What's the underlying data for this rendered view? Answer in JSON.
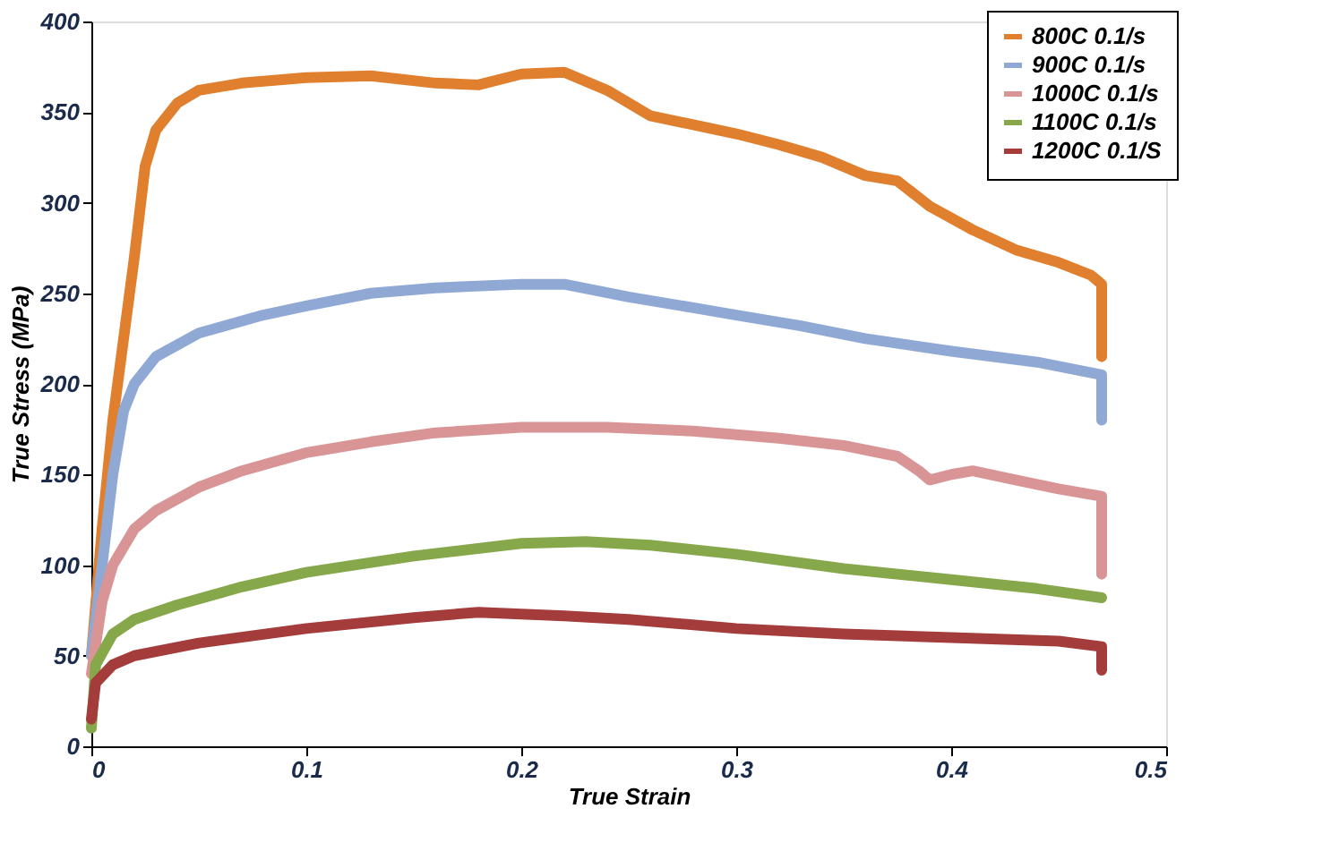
{
  "chart_data": {
    "type": "line",
    "xlabel": "True Strain",
    "ylabel": "True Stress (MPa)",
    "xlim": [
      0,
      0.5
    ],
    "xticks": [
      0,
      0.1,
      0.2,
      0.3,
      0.4,
      0.5
    ],
    "ylim": [
      0,
      400
    ],
    "yticks": [
      0,
      50,
      100,
      150,
      200,
      250,
      300,
      350,
      400
    ],
    "grid": false,
    "legend": "top right",
    "line_style": "solid",
    "series": [
      {
        "name": "800C 0.1/s",
        "color": "#e07f2e",
        "x": [
          0,
          0.005,
          0.01,
          0.02,
          0.025,
          0.03,
          0.04,
          0.05,
          0.07,
          0.1,
          0.13,
          0.16,
          0.18,
          0.2,
          0.22,
          0.24,
          0.26,
          0.28,
          0.3,
          0.32,
          0.34,
          0.36,
          0.375,
          0.39,
          0.41,
          0.43,
          0.45,
          0.465,
          0.47,
          0.47
        ],
        "values": [
          50,
          120,
          180,
          270,
          320,
          340,
          355,
          362,
          366,
          369,
          370,
          366,
          365,
          371,
          372,
          362,
          348,
          343,
          338,
          332,
          325,
          315,
          312,
          298,
          285,
          274,
          267,
          260,
          255,
          215
        ]
      },
      {
        "name": "900C 0.1/s",
        "color": "#8fa9d4",
        "x": [
          0,
          0.005,
          0.01,
          0.015,
          0.02,
          0.03,
          0.05,
          0.08,
          0.1,
          0.13,
          0.16,
          0.2,
          0.22,
          0.25,
          0.28,
          0.3,
          0.33,
          0.36,
          0.4,
          0.44,
          0.47,
          0.47
        ],
        "values": [
          50,
          100,
          150,
          185,
          200,
          215,
          228,
          238,
          243,
          250,
          253,
          255,
          255,
          248,
          242,
          238,
          232,
          225,
          218,
          212,
          205,
          180
        ]
      },
      {
        "name": "1000C 0.1/s",
        "color": "#d99595",
        "x": [
          0,
          0.005,
          0.01,
          0.02,
          0.03,
          0.05,
          0.07,
          0.1,
          0.13,
          0.16,
          0.2,
          0.24,
          0.28,
          0.32,
          0.35,
          0.375,
          0.385,
          0.39,
          0.4,
          0.41,
          0.43,
          0.45,
          0.47,
          0.47
        ],
        "values": [
          40,
          80,
          100,
          120,
          130,
          143,
          152,
          162,
          168,
          173,
          176,
          176,
          174,
          170,
          166,
          160,
          152,
          147,
          150,
          152,
          147,
          142,
          138,
          95
        ]
      },
      {
        "name": "1100C 0.1/s",
        "color": "#86a84a",
        "x": [
          0,
          0.002,
          0.01,
          0.02,
          0.04,
          0.07,
          0.1,
          0.15,
          0.2,
          0.23,
          0.26,
          0.3,
          0.35,
          0.4,
          0.44,
          0.47
        ],
        "values": [
          10,
          45,
          62,
          70,
          78,
          88,
          96,
          105,
          112,
          113,
          111,
          106,
          98,
          92,
          87,
          82
        ]
      },
      {
        "name": "1200C 0.1/S",
        "color": "#a33c3a",
        "x": [
          0,
          0.002,
          0.01,
          0.02,
          0.05,
          0.1,
          0.15,
          0.18,
          0.2,
          0.22,
          0.25,
          0.3,
          0.35,
          0.4,
          0.45,
          0.47,
          0.47
        ],
        "values": [
          15,
          35,
          45,
          50,
          57,
          65,
          71,
          74,
          73,
          72,
          70,
          65,
          62,
          60,
          58,
          55,
          42
        ]
      }
    ]
  }
}
